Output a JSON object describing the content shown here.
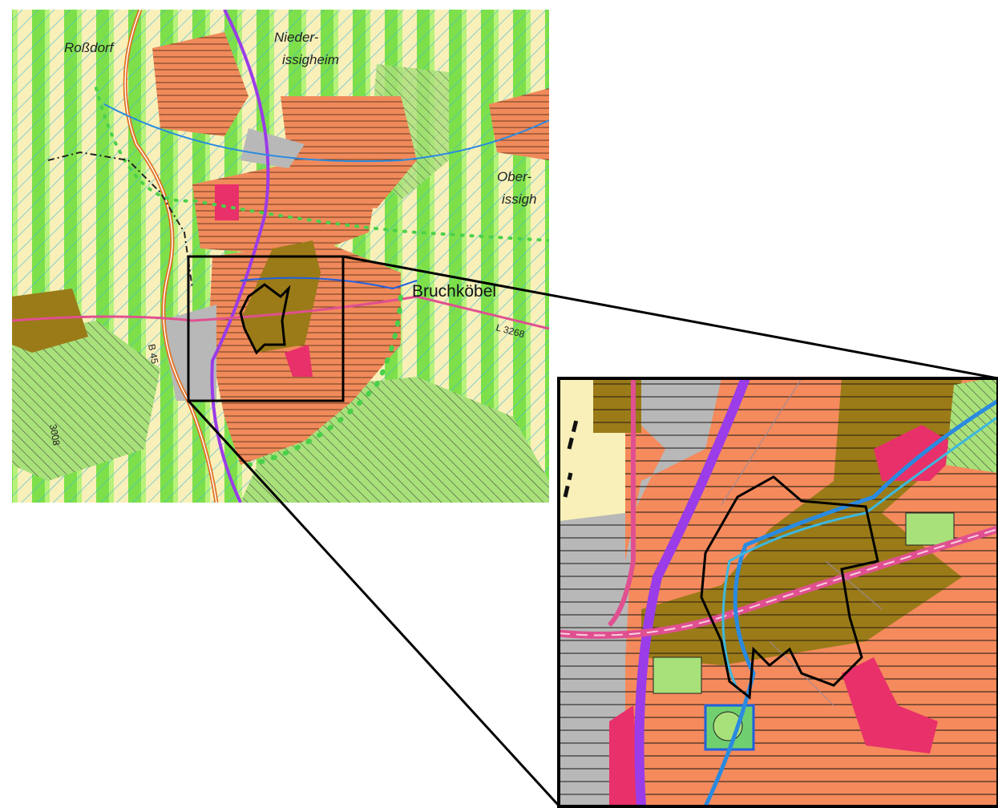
{
  "map_labels": [
    "Roßdorf",
    "Nieder-",
    "issigheim",
    "Ober-",
    "issigh",
    "Bruchköbel",
    "L 3268",
    "B 45",
    "3008"
  ]
}
